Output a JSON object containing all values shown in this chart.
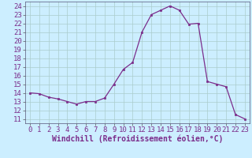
{
  "x": [
    0,
    1,
    2,
    3,
    4,
    5,
    6,
    7,
    8,
    9,
    10,
    11,
    12,
    13,
    14,
    15,
    16,
    17,
    18,
    19,
    20,
    21,
    22,
    23
  ],
  "y": [
    14,
    13.9,
    13.5,
    13.3,
    13.0,
    12.7,
    13.0,
    13.0,
    13.4,
    15.0,
    16.7,
    17.5,
    21.0,
    23.0,
    23.5,
    24.0,
    23.5,
    21.9,
    22.0,
    15.3,
    15.0,
    14.7,
    11.5,
    11.0
  ],
  "line_color": "#7b2d8b",
  "marker": "s",
  "marker_size": 2.0,
  "bg_color": "#cceeff",
  "grid_color": "#aacccc",
  "xlabel": "Windchill (Refroidissement éolien,°C)",
  "xlabel_fontsize": 7,
  "tick_fontsize": 6.5,
  "xlim": [
    -0.5,
    23.5
  ],
  "ylim": [
    10.5,
    24.5
  ],
  "yticks": [
    11,
    12,
    13,
    14,
    15,
    16,
    17,
    18,
    19,
    20,
    21,
    22,
    23,
    24
  ],
  "xticks": [
    0,
    1,
    2,
    3,
    4,
    5,
    6,
    7,
    8,
    9,
    10,
    11,
    12,
    13,
    14,
    15,
    16,
    17,
    18,
    19,
    20,
    21,
    22,
    23
  ]
}
